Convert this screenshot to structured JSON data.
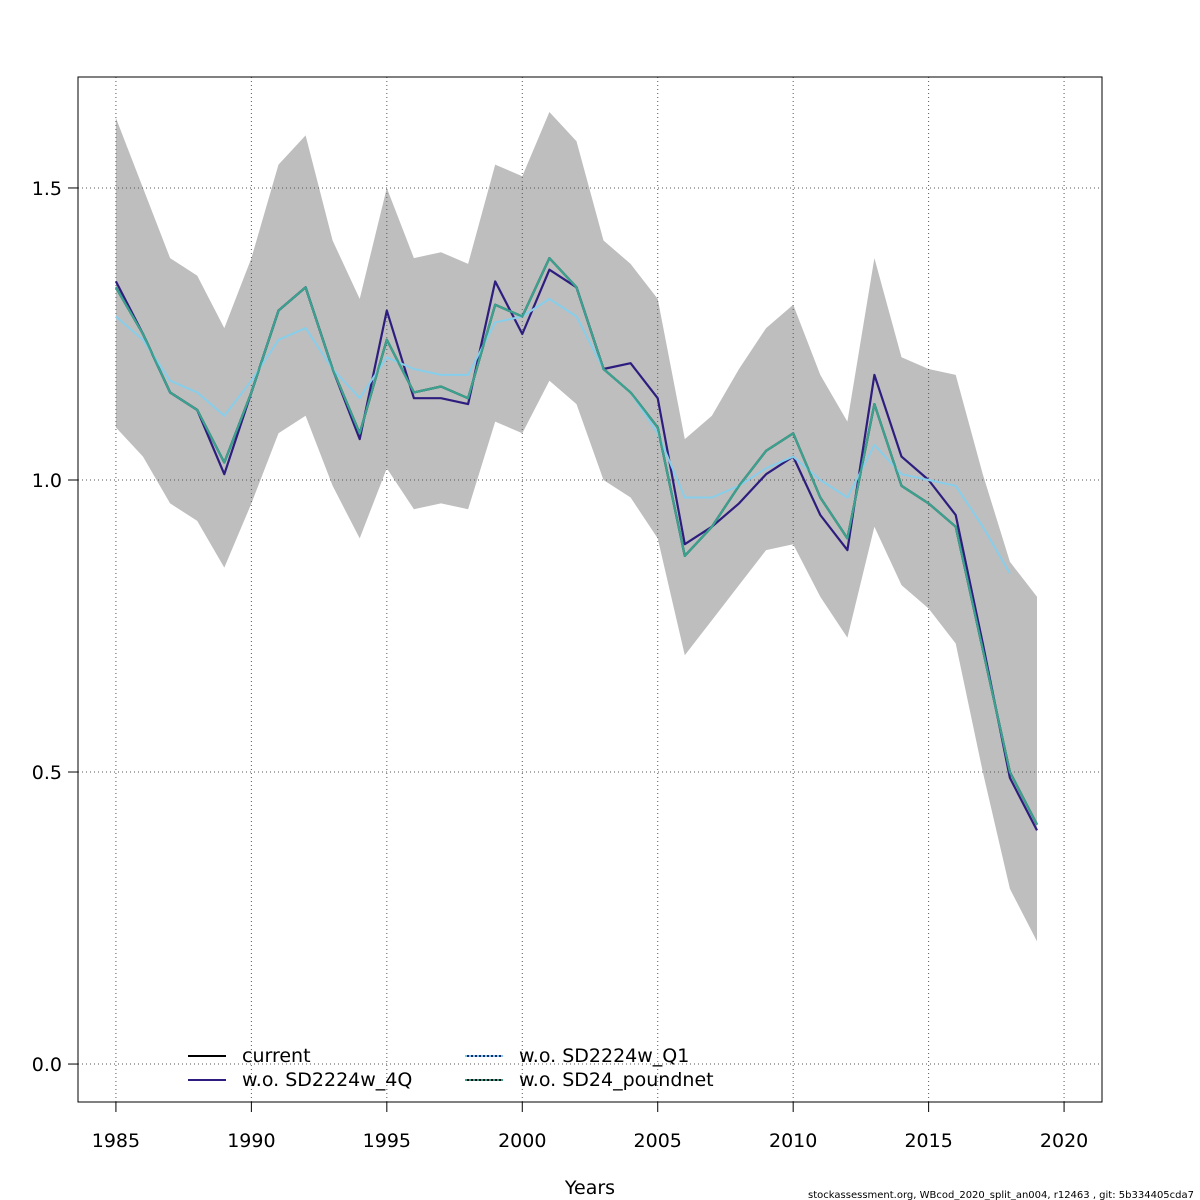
{
  "chart_data": {
    "type": "line",
    "title": "",
    "xlabel": "Years",
    "ylabel": "",
    "xlim": [
      1983.6,
      2021.4
    ],
    "ylim": [
      -0.065,
      1.69
    ],
    "grid": true,
    "x_ticks": [
      1985,
      1990,
      1995,
      2000,
      2005,
      2010,
      2015,
      2020
    ],
    "x_tick_labels": [
      "1985",
      "1990",
      "1995",
      "2000",
      "2005",
      "2010",
      "2015",
      "2020"
    ],
    "y_ticks": [
      0.0,
      0.5,
      1.0,
      1.5
    ],
    "y_tick_labels": [
      "0.0",
      "0.5",
      "1.0",
      "1.5"
    ],
    "legend_placement": "bottom-left",
    "x": [
      1985,
      1986,
      1987,
      1988,
      1989,
      1990,
      1991,
      1992,
      1993,
      1994,
      1995,
      1996,
      1997,
      1998,
      1999,
      2000,
      2001,
      2002,
      2003,
      2004,
      2005,
      2006,
      2007,
      2008,
      2009,
      2010,
      2011,
      2012,
      2013,
      2014,
      2015,
      2016,
      2017,
      2018,
      2019
    ],
    "band": {
      "color": "#bebebe",
      "upper": [
        1.62,
        1.5,
        1.38,
        1.35,
        1.26,
        1.38,
        1.54,
        1.59,
        1.41,
        1.31,
        1.5,
        1.38,
        1.39,
        1.37,
        1.54,
        1.52,
        1.63,
        1.58,
        1.41,
        1.37,
        1.31,
        1.07,
        1.11,
        1.19,
        1.26,
        1.3,
        1.18,
        1.1,
        1.38,
        1.21,
        1.19,
        1.18,
        1.01,
        0.86,
        0.8
      ],
      "lower": [
        1.09,
        1.04,
        0.96,
        0.93,
        0.85,
        0.96,
        1.08,
        1.11,
        0.99,
        0.9,
        1.02,
        0.95,
        0.96,
        0.95,
        1.1,
        1.08,
        1.17,
        1.13,
        1.0,
        0.97,
        0.9,
        0.7,
        0.76,
        0.82,
        0.88,
        0.89,
        0.8,
        0.73,
        0.92,
        0.82,
        0.78,
        0.72,
        0.5,
        0.3,
        0.21
      ]
    },
    "series": [
      {
        "name": "current",
        "color": "#000000",
        "dash": "solid",
        "values": [
          1.33,
          1.25,
          1.15,
          1.12,
          1.03,
          1.15,
          1.29,
          1.33,
          1.19,
          1.08,
          1.24,
          1.15,
          1.16,
          1.14,
          1.3,
          1.28,
          1.38,
          1.33,
          1.19,
          1.15,
          1.09,
          0.87,
          0.92,
          0.99,
          1.05,
          1.08,
          0.97,
          0.9,
          1.13,
          0.99,
          0.96,
          0.92,
          0.71,
          0.5,
          0.41
        ]
      },
      {
        "name": "w.o. SD2224w_4Q",
        "color": "#2e1d7e",
        "dash": "solid",
        "values": [
          1.34,
          1.25,
          1.15,
          1.12,
          1.01,
          1.15,
          1.29,
          1.33,
          1.19,
          1.07,
          1.29,
          1.14,
          1.14,
          1.13,
          1.34,
          1.25,
          1.36,
          1.33,
          1.19,
          1.2,
          1.14,
          0.89,
          0.92,
          0.96,
          1.01,
          1.04,
          0.94,
          0.88,
          1.18,
          1.04,
          1.0,
          0.94,
          0.72,
          0.49,
          0.4
        ]
      },
      {
        "name": "w.o. SD2224w_Q1",
        "color": "#87ceeb",
        "dash": "dotted",
        "values": [
          1.28,
          1.24,
          1.17,
          1.15,
          1.11,
          1.17,
          1.24,
          1.26,
          1.19,
          1.14,
          1.21,
          1.19,
          1.18,
          1.18,
          1.27,
          1.28,
          1.31,
          1.28,
          1.19,
          1.15,
          1.08,
          0.97,
          0.97,
          0.99,
          1.02,
          1.04,
          1.0,
          0.97,
          1.06,
          1.01,
          1.0,
          0.99,
          0.92,
          0.84,
          null
        ]
      },
      {
        "name": "w.o. SD24_poundnet",
        "color": "#3aa28f",
        "dash": "dotted",
        "values": [
          1.33,
          1.25,
          1.15,
          1.12,
          1.03,
          1.15,
          1.29,
          1.33,
          1.19,
          1.08,
          1.24,
          1.15,
          1.16,
          1.14,
          1.3,
          1.28,
          1.38,
          1.33,
          1.19,
          1.15,
          1.09,
          0.87,
          0.92,
          0.99,
          1.05,
          1.08,
          0.97,
          0.9,
          1.13,
          0.99,
          0.96,
          0.92,
          0.71,
          0.5,
          0.41
        ]
      }
    ]
  },
  "legend": {
    "items": [
      "current",
      "w.o. SD2224w_4Q",
      "w.o. SD2224w_Q1",
      "w.o. SD24_poundnet"
    ]
  },
  "footer": {
    "text": "stockassessment.org, WBcod_2020_split_an004, r12463 , git: 5b334405cda7"
  }
}
